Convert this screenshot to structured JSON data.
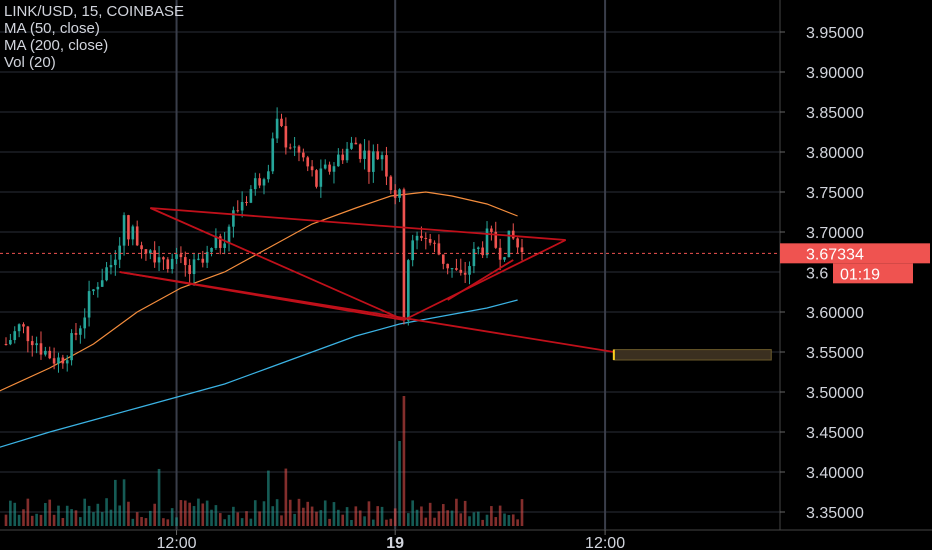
{
  "legend": {
    "symbol_line": "LINK/USD, 15, COINBASE",
    "ma50_label": "MA (50, close)",
    "ma200_label": "MA (200, close)",
    "vol_label": "Vol (20)"
  },
  "colors": {
    "background": "#000000",
    "grid": "#2a2e39",
    "up_candle": "#26a69a",
    "down_candle": "#ef5350",
    "ma50": "#f48d3d",
    "ma200": "#3bb3e4",
    "pattern_lines": "#c0101a",
    "target_box_fill": "#3b3020",
    "target_box_stroke": "#ffd21f",
    "axis_text": "#d1d4dc",
    "current_price_bg": "#ef5350"
  },
  "price_axis": {
    "ticks": [
      "3.95000",
      "3.90000",
      "3.85000",
      "3.80000",
      "3.75000",
      "3.70000",
      "3.60000",
      "3.55000",
      "3.50000",
      "3.45000",
      "3.40000",
      "3.35000"
    ],
    "current_price": "3.67334",
    "countdown": "01:19",
    "partial_tick": "3.6"
  },
  "time_axis": {
    "ticks": [
      "12:00",
      "19",
      "12:00"
    ]
  },
  "chart_data": {
    "type": "candlestick",
    "title": "LINK/USD, 15, COINBASE",
    "ylim": [
      3.33,
      3.98
    ],
    "yticks": [
      3.35,
      3.4,
      3.45,
      3.5,
      3.55,
      3.6,
      3.65,
      3.7,
      3.75,
      3.8,
      3.85,
      3.9,
      3.95
    ],
    "current_price": 3.67334,
    "x_range_bars": [
      0,
      125
    ],
    "last_bar_index": 118,
    "xticks": [
      {
        "label": "12:00",
        "bar": 39
      },
      {
        "label": "19",
        "bar": 89
      },
      {
        "label": "12:00",
        "bar": 137
      }
    ],
    "ohlc_close_path": [
      [
        0,
        3.56
      ],
      [
        3,
        3.58
      ],
      [
        6,
        3.57
      ],
      [
        9,
        3.55
      ],
      [
        12,
        3.54
      ],
      [
        15,
        3.56
      ],
      [
        18,
        3.6
      ],
      [
        21,
        3.64
      ],
      [
        24,
        3.66
      ],
      [
        27,
        3.71
      ],
      [
        30,
        3.69
      ],
      [
        33,
        3.68
      ],
      [
        36,
        3.67
      ],
      [
        39,
        3.66
      ],
      [
        42,
        3.65
      ],
      [
        45,
        3.66
      ],
      [
        48,
        3.68
      ],
      [
        51,
        3.71
      ],
      [
        54,
        3.74
      ],
      [
        57,
        3.76
      ],
      [
        60,
        3.79
      ],
      [
        62,
        3.83
      ],
      [
        65,
        3.81
      ],
      [
        68,
        3.79
      ],
      [
        71,
        3.76
      ],
      [
        74,
        3.78
      ],
      [
        77,
        3.8
      ],
      [
        80,
        3.81
      ],
      [
        83,
        3.79
      ],
      [
        86,
        3.8
      ],
      [
        88,
        3.76
      ],
      [
        90,
        3.74
      ],
      [
        91,
        3.6
      ],
      [
        92,
        3.67
      ],
      [
        95,
        3.7
      ],
      [
        98,
        3.68
      ],
      [
        101,
        3.66
      ],
      [
        104,
        3.64
      ],
      [
        107,
        3.67
      ],
      [
        110,
        3.69
      ],
      [
        113,
        3.68
      ],
      [
        116,
        3.69
      ],
      [
        118,
        3.673
      ]
    ],
    "series": [
      {
        "name": "MA (50, close)",
        "points": [
          [
            -2,
            3.5
          ],
          [
            10,
            3.53
          ],
          [
            20,
            3.56
          ],
          [
            30,
            3.6
          ],
          [
            40,
            3.63
          ],
          [
            50,
            3.65
          ],
          [
            60,
            3.68
          ],
          [
            70,
            3.71
          ],
          [
            80,
            3.73
          ],
          [
            88,
            3.745
          ],
          [
            96,
            3.75
          ],
          [
            102,
            3.745
          ],
          [
            110,
            3.735
          ],
          [
            117,
            3.72
          ]
        ]
      },
      {
        "name": "MA (200, close)",
        "points": [
          [
            -2,
            3.43
          ],
          [
            10,
            3.45
          ],
          [
            20,
            3.465
          ],
          [
            30,
            3.48
          ],
          [
            40,
            3.495
          ],
          [
            50,
            3.51
          ],
          [
            60,
            3.53
          ],
          [
            70,
            3.55
          ],
          [
            80,
            3.57
          ],
          [
            90,
            3.585
          ],
          [
            100,
            3.595
          ],
          [
            110,
            3.605
          ],
          [
            117,
            3.615
          ]
        ]
      },
      {
        "name": "Vol (20)"
      }
    ],
    "pattern_lines": [
      [
        [
          33,
          3.73
        ],
        [
          128,
          3.69
        ]
      ],
      [
        [
          26,
          3.65
        ],
        [
          91,
          3.59
        ]
      ],
      [
        [
          33,
          3.73
        ],
        [
          91,
          3.59
        ]
      ],
      [
        [
          91,
          3.59
        ],
        [
          128,
          3.69
        ]
      ],
      [
        [
          101,
          3.615
        ],
        [
          116,
          3.665
        ]
      ],
      [
        [
          26,
          3.65
        ],
        [
          139,
          3.55
        ]
      ]
    ],
    "target_zone": {
      "x_start": 139,
      "x_end": 175,
      "y_top": 3.553,
      "y_bottom": 3.54
    }
  }
}
